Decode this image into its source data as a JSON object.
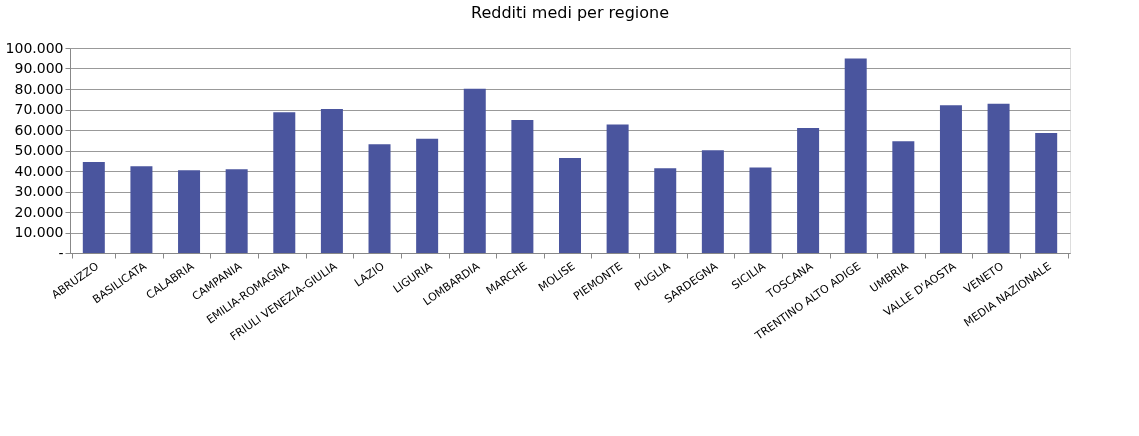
{
  "chart_data": {
    "type": "bar",
    "title": "Redditi medi per regione",
    "categories": [
      "ABRUZZO",
      "BASILICATA",
      "CALABRIA",
      "CAMPANIA",
      "EMILIA-ROMAGNA",
      "FRIULI VENEZIA-GIULIA",
      "LAZIO",
      "LIGURIA",
      "LOMBARDIA",
      "MARCHE",
      "MOLISE",
      "PIEMONTE",
      "PUGLIA",
      "SARDEGNA",
      "SICILIA",
      "TOSCANA",
      "TRENTINO ALTO ADIGE",
      "UMBRIA",
      "VALLE D'AOSTA",
      "VENETO",
      "MEDIA NAZIONALE"
    ],
    "values": [
      44400,
      42300,
      40400,
      40800,
      68600,
      70300,
      53100,
      55700,
      80100,
      64900,
      46400,
      62700,
      41300,
      50100,
      41700,
      61000,
      94900,
      54500,
      72100,
      72800,
      58500
    ],
    "color": "#4a559e",
    "ylim": [
      0,
      100000
    ],
    "yticks": [
      {
        "value": 0,
        "label": "-"
      },
      {
        "value": 10000,
        "label": "10.000"
      },
      {
        "value": 20000,
        "label": "20.000"
      },
      {
        "value": 30000,
        "label": "30.000"
      },
      {
        "value": 40000,
        "label": "40.000"
      },
      {
        "value": 50000,
        "label": "50.000"
      },
      {
        "value": 60000,
        "label": "60.000"
      },
      {
        "value": 70000,
        "label": "70.000"
      },
      {
        "value": 80000,
        "label": "80.000"
      },
      {
        "value": 90000,
        "label": "90.000"
      },
      {
        "value": 100000,
        "label": "100.000"
      }
    ],
    "grid": "y"
  }
}
